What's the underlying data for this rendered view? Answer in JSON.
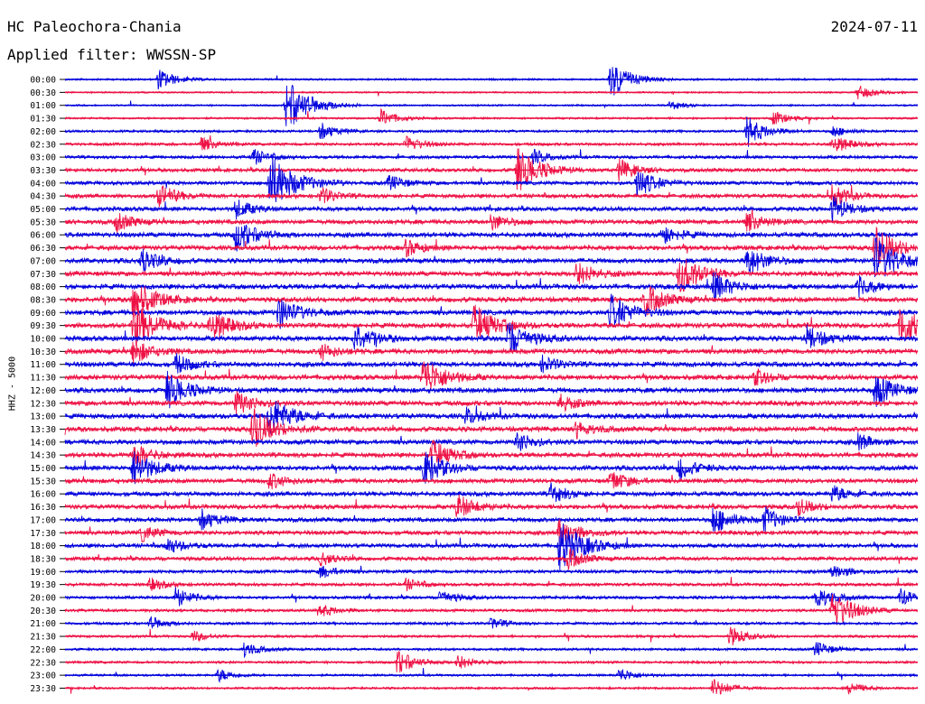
{
  "header": {
    "station": "HC Paleochora-Chania",
    "date": "2024-07-11",
    "filter": "Applied filter: WWSSN-SP"
  },
  "chart_data": {
    "type": "line",
    "title": "HC Paleochora-Chania",
    "ylabel": "HHZ - 5000",
    "colors": [
      "#0000dd",
      "#ee1144"
    ],
    "rows": [
      {
        "time": "00:00",
        "activity": 0.18,
        "events": [
          [
            0.11,
            1.3
          ],
          [
            0.64,
            2.3
          ]
        ]
      },
      {
        "time": "00:30",
        "activity": 0.12,
        "events": [
          [
            0.93,
            0.9
          ]
        ]
      },
      {
        "time": "01:00",
        "activity": 0.15,
        "events": [
          [
            0.26,
            3.2
          ],
          [
            0.71,
            0.6
          ]
        ]
      },
      {
        "time": "01:30",
        "activity": 0.2,
        "events": [
          [
            0.37,
            1.1
          ],
          [
            0.83,
            0.9
          ]
        ]
      },
      {
        "time": "02:00",
        "activity": 0.3,
        "events": [
          [
            0.3,
            1.0
          ],
          [
            0.8,
            1.8
          ],
          [
            0.9,
            0.7
          ]
        ]
      },
      {
        "time": "02:30",
        "activity": 0.38,
        "events": [
          [
            0.16,
            0.9
          ],
          [
            0.4,
            1.0
          ],
          [
            0.9,
            1.2
          ]
        ]
      },
      {
        "time": "03:00",
        "activity": 0.45,
        "events": [
          [
            0.22,
            1.0
          ],
          [
            0.55,
            0.9
          ]
        ]
      },
      {
        "time": "03:30",
        "activity": 0.55,
        "events": [
          [
            0.53,
            2.8
          ],
          [
            0.65,
            1.3
          ]
        ]
      },
      {
        "time": "04:00",
        "activity": 0.6,
        "events": [
          [
            0.24,
            3.5
          ],
          [
            0.38,
            1.0
          ],
          [
            0.67,
            1.8
          ]
        ]
      },
      {
        "time": "04:30",
        "activity": 0.65,
        "events": [
          [
            0.11,
            1.5
          ],
          [
            0.3,
            1.0
          ],
          [
            0.9,
            1.3
          ]
        ]
      },
      {
        "time": "05:00",
        "activity": 0.7,
        "events": [
          [
            0.2,
            1.2
          ],
          [
            0.9,
            1.5
          ]
        ]
      },
      {
        "time": "05:30",
        "activity": 0.75,
        "events": [
          [
            0.06,
            1.2
          ],
          [
            0.5,
            1.0
          ],
          [
            0.8,
            1.2
          ]
        ]
      },
      {
        "time": "06:00",
        "activity": 0.8,
        "events": [
          [
            0.2,
            2.0
          ],
          [
            0.7,
            1.2
          ]
        ]
      },
      {
        "time": "06:30",
        "activity": 0.8,
        "events": [
          [
            0.4,
            1.0
          ],
          [
            0.95,
            2.5
          ]
        ]
      },
      {
        "time": "07:00",
        "activity": 0.8,
        "events": [
          [
            0.09,
            1.5
          ],
          [
            0.8,
            1.8
          ],
          [
            0.95,
            3.0
          ]
        ]
      },
      {
        "time": "07:30",
        "activity": 0.8,
        "events": [
          [
            0.6,
            1.5
          ],
          [
            0.72,
            2.5
          ]
        ]
      },
      {
        "time": "08:00",
        "activity": 0.85,
        "events": [
          [
            0.76,
            1.8
          ],
          [
            0.93,
            1.2
          ]
        ]
      },
      {
        "time": "08:30",
        "activity": 0.85,
        "events": [
          [
            0.08,
            2.5
          ],
          [
            0.68,
            2.0
          ]
        ]
      },
      {
        "time": "09:00",
        "activity": 0.85,
        "events": [
          [
            0.25,
            2.0
          ],
          [
            0.64,
            2.2
          ]
        ]
      },
      {
        "time": "09:30",
        "activity": 0.85,
        "events": [
          [
            0.08,
            3.0
          ],
          [
            0.17,
            2.0
          ],
          [
            0.48,
            2.5
          ],
          [
            0.98,
            2.5
          ]
        ]
      },
      {
        "time": "10:00",
        "activity": 0.85,
        "events": [
          [
            0.34,
            1.8
          ],
          [
            0.52,
            2.2
          ],
          [
            0.87,
            1.5
          ]
        ]
      },
      {
        "time": "10:30",
        "activity": 0.85,
        "events": [
          [
            0.08,
            1.5
          ],
          [
            0.3,
            1.0
          ]
        ]
      },
      {
        "time": "11:00",
        "activity": 0.85,
        "events": [
          [
            0.13,
            1.2
          ],
          [
            0.56,
            1.0
          ]
        ]
      },
      {
        "time": "11:30",
        "activity": 0.85,
        "events": [
          [
            0.42,
            2.5
          ],
          [
            0.81,
            1.0
          ]
        ]
      },
      {
        "time": "12:00",
        "activity": 0.85,
        "events": [
          [
            0.12,
            2.2
          ],
          [
            0.95,
            2.0
          ]
        ]
      },
      {
        "time": "12:30",
        "activity": 0.85,
        "events": [
          [
            0.2,
            1.5
          ],
          [
            0.58,
            1.0
          ]
        ]
      },
      {
        "time": "13:00",
        "activity": 0.85,
        "events": [
          [
            0.24,
            2.5
          ],
          [
            0.47,
            1.0
          ]
        ]
      },
      {
        "time": "13:30",
        "activity": 0.85,
        "events": [
          [
            0.22,
            2.5
          ],
          [
            0.6,
            1.0
          ]
        ]
      },
      {
        "time": "14:00",
        "activity": 0.8,
        "events": [
          [
            0.53,
            1.2
          ],
          [
            0.93,
            1.0
          ]
        ]
      },
      {
        "time": "14:30",
        "activity": 0.8,
        "events": [
          [
            0.08,
            1.5
          ],
          [
            0.43,
            1.8
          ]
        ]
      },
      {
        "time": "15:00",
        "activity": 0.8,
        "events": [
          [
            0.08,
            2.2
          ],
          [
            0.42,
            2.2
          ],
          [
            0.72,
            1.3
          ]
        ]
      },
      {
        "time": "15:30",
        "activity": 0.75,
        "events": [
          [
            0.24,
            1.0
          ],
          [
            0.64,
            1.3
          ]
        ]
      },
      {
        "time": "16:00",
        "activity": 0.75,
        "events": [
          [
            0.57,
            1.2
          ],
          [
            0.9,
            1.0
          ]
        ]
      },
      {
        "time": "16:30",
        "activity": 0.75,
        "events": [
          [
            0.46,
            1.5
          ],
          [
            0.86,
            1.0
          ]
        ]
      },
      {
        "time": "17:00",
        "activity": 0.7,
        "events": [
          [
            0.16,
            1.2
          ],
          [
            0.76,
            1.8
          ],
          [
            0.82,
            1.5
          ]
        ]
      },
      {
        "time": "17:30",
        "activity": 0.7,
        "events": [
          [
            0.09,
            1.0
          ],
          [
            0.58,
            1.8
          ]
        ]
      },
      {
        "time": "18:00",
        "activity": 0.65,
        "events": [
          [
            0.58,
            3.2
          ],
          [
            0.12,
            1.0
          ]
        ]
      },
      {
        "time": "18:30",
        "activity": 0.6,
        "events": [
          [
            0.59,
            1.2
          ],
          [
            0.3,
            0.8
          ]
        ]
      },
      {
        "time": "19:00",
        "activity": 0.5,
        "events": [
          [
            0.3,
            0.8
          ],
          [
            0.9,
            1.0
          ]
        ]
      },
      {
        "time": "19:30",
        "activity": 0.45,
        "events": [
          [
            0.1,
            0.8
          ],
          [
            0.4,
            0.7
          ]
        ]
      },
      {
        "time": "20:00",
        "activity": 0.42,
        "events": [
          [
            0.13,
            1.2
          ],
          [
            0.44,
            1.0
          ],
          [
            0.88,
            1.5
          ],
          [
            0.98,
            1.0
          ]
        ]
      },
      {
        "time": "20:30",
        "activity": 0.4,
        "events": [
          [
            0.9,
            2.5
          ],
          [
            0.3,
            0.8
          ]
        ]
      },
      {
        "time": "21:00",
        "activity": 0.35,
        "events": [
          [
            0.1,
            0.8
          ],
          [
            0.5,
            0.7
          ]
        ]
      },
      {
        "time": "21:30",
        "activity": 0.3,
        "events": [
          [
            0.15,
            0.7
          ],
          [
            0.78,
            1.2
          ]
        ]
      },
      {
        "time": "22:00",
        "activity": 0.3,
        "events": [
          [
            0.21,
            0.9
          ],
          [
            0.88,
            1.0
          ]
        ]
      },
      {
        "time": "22:30",
        "activity": 0.3,
        "events": [
          [
            0.39,
            1.5
          ],
          [
            0.46,
            1.0
          ]
        ]
      },
      {
        "time": "23:00",
        "activity": 0.25,
        "events": [
          [
            0.18,
            0.8
          ],
          [
            0.65,
            0.9
          ]
        ]
      },
      {
        "time": "23:30",
        "activity": 0.22,
        "events": [
          [
            0.76,
            1.2
          ],
          [
            0.92,
            0.8
          ]
        ]
      }
    ]
  }
}
